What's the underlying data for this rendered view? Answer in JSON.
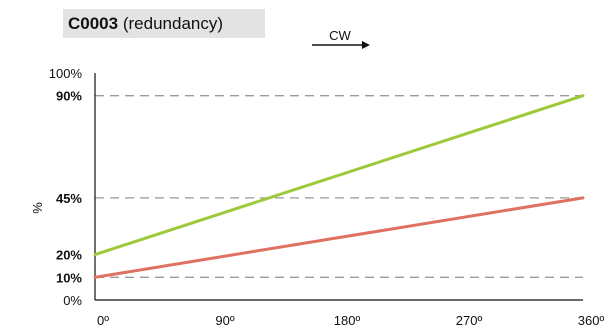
{
  "title": {
    "code": "C0003",
    "label": "(redundancy)"
  },
  "direction": {
    "label": "CW"
  },
  "chart_data": {
    "type": "line",
    "ylabel": "%",
    "xlim": [
      0,
      360
    ],
    "ylim": [
      0,
      100
    ],
    "x_ticks": [
      {
        "value": 0,
        "label": "0º"
      },
      {
        "value": 90,
        "label": "90º"
      },
      {
        "value": 180,
        "label": "180º"
      },
      {
        "value": 270,
        "label": "270º"
      },
      {
        "value": 360,
        "label": "360º"
      }
    ],
    "y_ticks": [
      {
        "value": 0,
        "label": "0%",
        "bold": false,
        "dashed": false
      },
      {
        "value": 10,
        "label": "10%",
        "bold": true,
        "dashed": true
      },
      {
        "value": 20,
        "label": "20%",
        "bold": true,
        "dashed": false
      },
      {
        "value": 45,
        "label": "45%",
        "bold": true,
        "dashed": true
      },
      {
        "value": 90,
        "label": "90%",
        "bold": true,
        "dashed": true
      },
      {
        "value": 100,
        "label": "100%",
        "bold": false,
        "dashed": false
      }
    ],
    "series": [
      {
        "color": "#9dc93a",
        "x": [
          0,
          360
        ],
        "y": [
          20,
          90
        ]
      },
      {
        "color": "#e07060",
        "x": [
          0,
          360
        ],
        "y": [
          10,
          45
        ]
      }
    ],
    "grid": false,
    "legend": "none"
  }
}
